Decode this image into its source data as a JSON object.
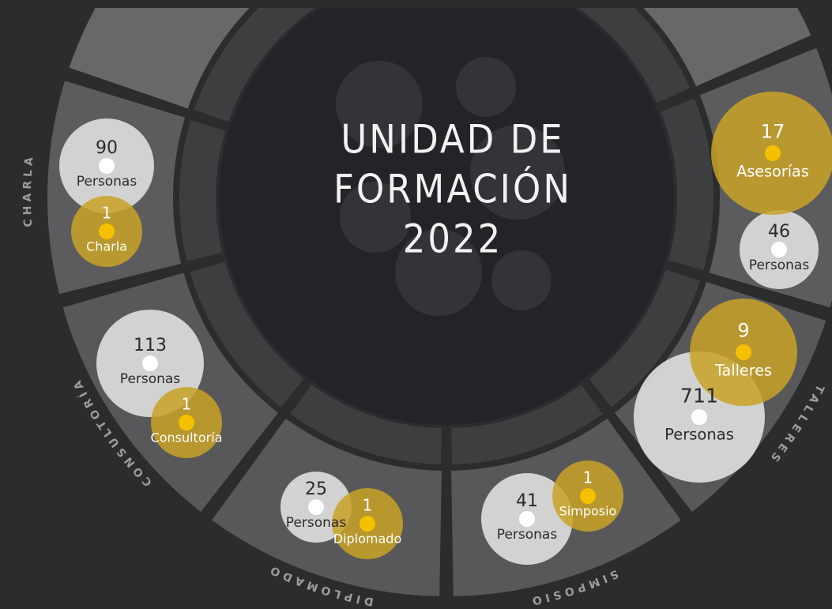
{
  "title": [
    "UNIDAD DE",
    "FORMACIÓN",
    "2022"
  ],
  "segments": [
    {
      "name": "CHARLA",
      "personas": "90",
      "personas_label": "Personas",
      "count": "1",
      "count_label": "Charla"
    },
    {
      "name": "CONSULTORÍA",
      "personas": "113",
      "personas_label": "Personas",
      "count": "1",
      "count_label": "Consultoría"
    },
    {
      "name": "DIPLOMADO",
      "personas": "25",
      "personas_label": "Personas",
      "count": "1",
      "count_label": "Diplomado"
    },
    {
      "name": "SIMPOSIO",
      "personas": "41",
      "personas_label": "Personas",
      "count": "1",
      "count_label": "Simposio"
    },
    {
      "name": "TALLERES",
      "personas": "711",
      "personas_label": "Personas",
      "count": "9",
      "count_label": "Talleres"
    },
    {
      "name": "ASESORÍAS",
      "personas": "46",
      "personas_label": "Personas",
      "count": "17",
      "count_label": "Asesorías"
    }
  ]
}
